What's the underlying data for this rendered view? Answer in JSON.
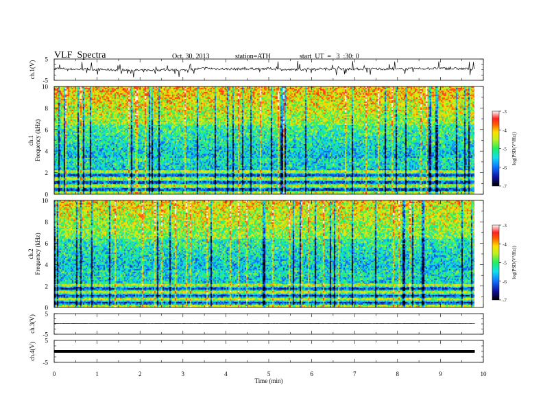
{
  "header": {
    "title": "VLF  Spectra",
    "date": "Oct. 30, 2013",
    "station": "station=ATH",
    "start": "start  UT  =   3  :30: 0"
  },
  "chart_data": [
    {
      "type": "line",
      "panel": "ch1-waveform",
      "ylabel": "ch.1(V)",
      "ylim": [
        -5,
        5
      ],
      "yticks": [
        "5",
        "-5"
      ],
      "x": [
        0,
        0.5,
        1,
        1.5,
        2,
        2.5,
        3,
        3.5,
        4,
        4.5,
        5,
        5.5,
        6,
        6.5,
        7,
        7.5,
        8,
        8.5,
        9,
        9.5,
        9.8
      ],
      "values": [
        0.6,
        0.2,
        0.1,
        -0.2,
        -0.3,
        -0.1,
        -0.3,
        0.6,
        0.3,
        0.4,
        0.5,
        -0.1,
        0.4,
        0.4,
        0.3,
        0.4,
        0.2,
        0.5,
        0.6,
        0.4,
        0.3
      ]
    },
    {
      "type": "heatmap",
      "panel": "ch1-spectrogram",
      "ylabel": "ch.1\nFrequency  (kHz)",
      "ylim": [
        0,
        10
      ],
      "yticks": [
        "0",
        "2",
        "4",
        "6",
        "8",
        "10"
      ],
      "colorbar_label": "log(PSD(V²/Hz))",
      "colorbar_ticks": [
        "-3",
        "-4",
        "-5",
        "-6",
        "-7"
      ],
      "colorbar_range": [
        -7,
        -3
      ]
    },
    {
      "type": "heatmap",
      "panel": "ch2-spectrogram",
      "ylabel": "ch.2\nFrequency  (kHz)",
      "ylim": [
        0,
        10
      ],
      "yticks": [
        "0",
        "2",
        "4",
        "6",
        "8",
        "10"
      ],
      "colorbar_label": "log(PSD(V²/Hz))",
      "colorbar_ticks": [
        "-3",
        "-4",
        "-5",
        "-6",
        "-7"
      ],
      "colorbar_range": [
        -7,
        -3
      ]
    },
    {
      "type": "line",
      "panel": "ch3-waveform",
      "ylabel": "ch.3(V)",
      "ylim": [
        -5,
        5
      ],
      "yticks": [
        "5",
        "-5"
      ],
      "x": [
        0,
        9.8
      ],
      "values": [
        0.2,
        0.2
      ]
    },
    {
      "type": "line",
      "panel": "ch4-waveform",
      "ylabel": "ch.4(V)",
      "ylim": [
        -5,
        5
      ],
      "yticks": [
        "5",
        "-5"
      ],
      "x": [
        0,
        9.8
      ],
      "values": [
        0,
        0
      ]
    }
  ],
  "xaxis": {
    "label": "Time  (min)",
    "range": [
      0,
      10
    ],
    "ticks": [
      "0",
      "1",
      "2",
      "3",
      "4",
      "5",
      "6",
      "7",
      "8",
      "9",
      "10"
    ]
  },
  "colors": {
    "background": "#ffffff",
    "frame": "#000000"
  }
}
